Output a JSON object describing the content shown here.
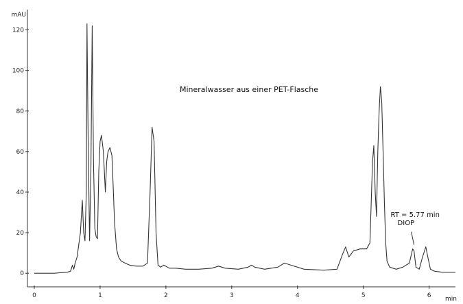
{
  "chart_data": {
    "type": "line",
    "title": "Mineralwasser aus einer PET-Flasche",
    "ylabel": "mAU",
    "xlabel": "min",
    "xlim": [
      0,
      6.4
    ],
    "ylim": [
      -4,
      130
    ],
    "x_ticks": [
      "0",
      "1",
      "2",
      "3",
      "4",
      "5",
      "6"
    ],
    "y_ticks": [
      "0",
      "20",
      "40",
      "60",
      "80",
      "100",
      "120"
    ],
    "grid": false,
    "annotations": [
      {
        "line1": "RT = 5.77 min",
        "line2": "DIOP",
        "x": 5.77,
        "y": 13
      }
    ],
    "series": [
      {
        "x": [
          0,
          0.3,
          0.5,
          0.55,
          0.58,
          0.6,
          0.62,
          0.65,
          0.7,
          0.73,
          0.75,
          0.77,
          0.79,
          0.8,
          0.82,
          0.84,
          0.86,
          0.88,
          0.9,
          0.92,
          0.94,
          0.96,
          0.98,
          1.0,
          1.02,
          1.05,
          1.08,
          1.1,
          1.12,
          1.15,
          1.18,
          1.2,
          1.22,
          1.25,
          1.28,
          1.32,
          1.38,
          1.45,
          1.55,
          1.65,
          1.72,
          1.76,
          1.79,
          1.82,
          1.85,
          1.88,
          1.92,
          1.97,
          2.05,
          2.15,
          2.3,
          2.5,
          2.7,
          2.8,
          2.9,
          3.1,
          3.25,
          3.3,
          3.35,
          3.5,
          3.7,
          3.8,
          3.9,
          4.1,
          4.4,
          4.6,
          4.68,
          4.73,
          4.78,
          4.85,
          4.95,
          5.05,
          5.1,
          5.14,
          5.16,
          5.18,
          5.2,
          5.22,
          5.24,
          5.26,
          5.28,
          5.3,
          5.32,
          5.34,
          5.36,
          5.4,
          5.5,
          5.6,
          5.7,
          5.75,
          5.77,
          5.8,
          5.85,
          5.9,
          5.95,
          5.98,
          6.02,
          6.08,
          6.2,
          6.4
        ],
        "values": [
          0,
          0,
          0.5,
          1,
          4,
          2,
          5,
          8,
          20,
          36,
          20,
          16,
          40,
          123,
          60,
          16,
          50,
          122,
          55,
          22,
          18,
          17,
          50,
          65,
          68,
          60,
          40,
          55,
          60,
          62,
          58,
          42,
          25,
          12,
          8,
          6,
          5,
          4,
          3.5,
          3.5,
          5,
          40,
          72,
          65,
          20,
          4,
          3,
          4,
          2.5,
          2.5,
          2,
          2,
          2.5,
          3.5,
          2.5,
          2,
          3,
          4,
          3,
          2,
          3,
          5,
          4,
          2,
          1.5,
          2,
          9,
          13,
          8,
          11,
          12,
          12,
          15,
          55,
          63,
          40,
          28,
          60,
          80,
          92,
          85,
          60,
          35,
          15,
          6,
          3,
          2,
          3,
          5,
          12,
          11,
          3,
          2,
          8,
          13,
          8,
          2,
          1,
          0.5,
          0.5
        ]
      }
    ]
  }
}
